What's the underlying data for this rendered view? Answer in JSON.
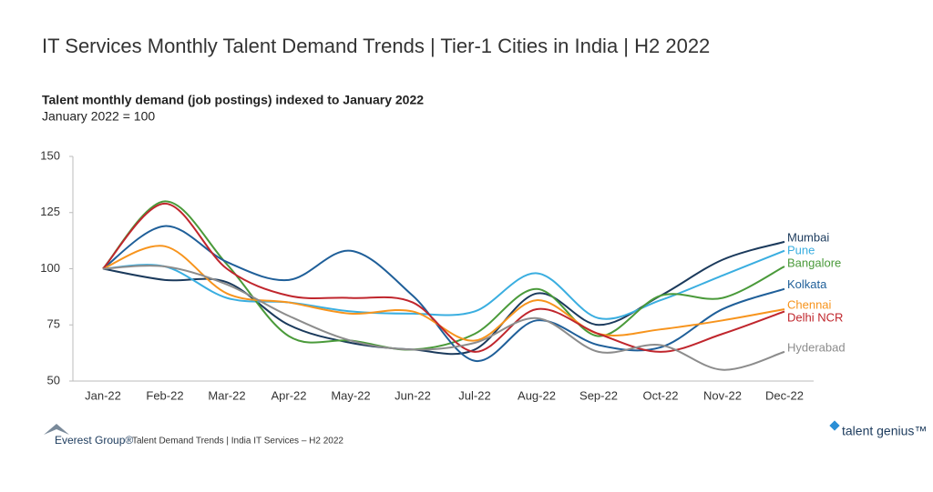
{
  "chart_data": {
    "type": "line",
    "title": "IT Services Monthly Talent Demand Trends | Tier-1 Cities in India | H2 2022",
    "subtitle": "Talent monthly demand (job postings) indexed to January 2022",
    "note": "January 2022 = 100",
    "categories": [
      "Jan-22",
      "Feb-22",
      "Mar-22",
      "Apr-22",
      "May-22",
      "Jun-22",
      "Jul-22",
      "Aug-22",
      "Sep-22",
      "Oct-22",
      "Nov-22",
      "Dec-22"
    ],
    "series": [
      {
        "name": "Mumbai",
        "color": "#1b3a5c",
        "values": [
          100,
          95,
          94,
          75,
          67,
          64,
          64,
          89,
          75,
          88,
          104,
          112
        ]
      },
      {
        "name": "Pune",
        "color": "#3aaee0",
        "values": [
          100,
          101,
          87,
          85,
          81,
          80,
          81,
          98,
          78,
          86,
          97,
          108
        ]
      },
      {
        "name": "Bangalore",
        "color": "#4a9a3a",
        "values": [
          100,
          130,
          102,
          70,
          68,
          64,
          71,
          91,
          70,
          88,
          87,
          101
        ]
      },
      {
        "name": "Kolkata",
        "color": "#1f5f99",
        "values": [
          100,
          119,
          103,
          95,
          108,
          88,
          59,
          77,
          66,
          65,
          82,
          91
        ]
      },
      {
        "name": "Chennai",
        "color": "#f7941d",
        "values": [
          100,
          110,
          89,
          85,
          80,
          81,
          68,
          86,
          71,
          73,
          77,
          82
        ]
      },
      {
        "name": "Delhi NCR",
        "color": "#c0262d",
        "values": [
          100,
          129,
          100,
          88,
          87,
          85,
          63,
          82,
          71,
          63,
          71,
          81
        ]
      },
      {
        "name": "Hyderabad",
        "color": "#8c8c8c",
        "values": [
          100,
          101,
          93,
          79,
          68,
          64,
          67,
          78,
          63,
          66,
          55,
          63
        ]
      }
    ],
    "ylim": [
      50,
      150
    ],
    "yticks": [
      50,
      75,
      100,
      125,
      150
    ],
    "grid": false
  },
  "footer": {
    "brand": "Everest Group®",
    "source": "Talent Demand Trends | India IT Services – H2 2022",
    "logo": "talent genius™"
  }
}
